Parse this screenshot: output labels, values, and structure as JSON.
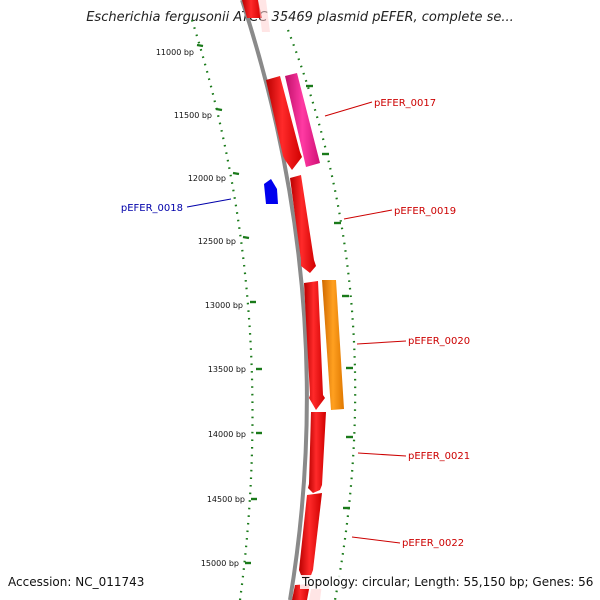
{
  "title": "Escherichia fergusonii ATCC 35469 plasmid pEFER, complete se...",
  "footer": {
    "accession": "Accession: NC_011743",
    "summary": "Topology: circular; Length: 55,150 bp; Genes: 56"
  },
  "colors": {
    "backbone": "#8a8a8a",
    "tick": "#1a7a1a",
    "forward_gene": "#ff0000",
    "reverse_gene": "#0000ff",
    "label_forward": "#cc0000",
    "label_reverse": "#0000aa",
    "pink_gene": "#ff1493",
    "orange_gene": "#ff8c00"
  },
  "ticks": [
    {
      "label": "11000 bp"
    },
    {
      "label": "11500 bp"
    },
    {
      "label": "12000 bp"
    },
    {
      "label": "12500 bp"
    },
    {
      "label": "13000 bp"
    },
    {
      "label": "13500 bp"
    },
    {
      "label": "14000 bp"
    },
    {
      "label": "14500 bp"
    },
    {
      "label": "15000 bp"
    }
  ],
  "genes": [
    {
      "name": "pEFER_0017",
      "strand": "forward"
    },
    {
      "name": "pEFER_0018",
      "strand": "reverse"
    },
    {
      "name": "pEFER_0019",
      "strand": "forward"
    },
    {
      "name": "pEFER_0020",
      "strand": "forward"
    },
    {
      "name": "pEFER_0021",
      "strand": "forward"
    },
    {
      "name": "pEFER_0022",
      "strand": "forward"
    }
  ]
}
